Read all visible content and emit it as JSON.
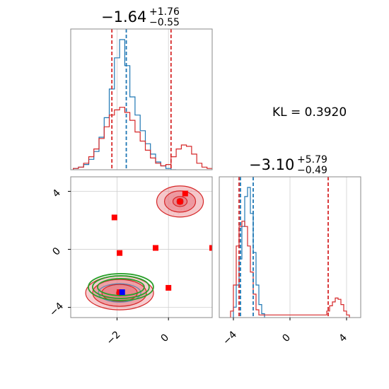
{
  "colors": {
    "blue": "#1f77b4",
    "red": "#d62728",
    "red_fill": "#e8838a",
    "green": "#2ca02c",
    "marker_red": "#ff0000",
    "marker_blue": "#0000ff",
    "grid": "#cfcfcf",
    "frame": "#8a8a8a"
  },
  "kl_text": "KL = 0.3920",
  "titles": {
    "x": {
      "main": "−1.64",
      "sup": "+1.76",
      "sub": "−0.55"
    },
    "y": {
      "main": "−3.10",
      "sup": "+5.79",
      "sub": "−0.49"
    }
  },
  "chart_data": [
    {
      "type": "histogram",
      "panel": "top-left marginal (parameter 1)",
      "xlim": [
        -3.8,
        1.7
      ],
      "x_ticks": [
        -2,
        0
      ],
      "series": [
        {
          "color": "blue",
          "bin_centers": [
            -3.6,
            -3.4,
            -3.2,
            -3.0,
            -2.8,
            -2.6,
            -2.4,
            -2.2,
            -2.0,
            -1.8,
            -1.6,
            -1.4,
            -1.2,
            -1.0,
            -0.8,
            -0.6,
            -0.4,
            -0.2,
            0.0,
            0.2
          ],
          "relative_heights": [
            0.01,
            0.02,
            0.04,
            0.08,
            0.14,
            0.25,
            0.4,
            0.62,
            0.86,
            1.0,
            0.8,
            0.56,
            0.42,
            0.3,
            0.2,
            0.12,
            0.06,
            0.03,
            0.01,
            0.0
          ]
        },
        {
          "color": "red",
          "bin_centers": [
            -3.6,
            -3.4,
            -3.2,
            -3.0,
            -2.8,
            -2.6,
            -2.4,
            -2.2,
            -2.0,
            -1.8,
            -1.6,
            -1.4,
            -1.2,
            -1.0,
            -0.8,
            -0.6,
            -0.4,
            -0.2,
            0.0,
            0.2,
            0.4,
            0.6,
            0.8,
            1.0,
            1.2,
            1.4,
            1.6
          ],
          "relative_heights": [
            0.01,
            0.02,
            0.05,
            0.1,
            0.16,
            0.24,
            0.33,
            0.42,
            0.46,
            0.48,
            0.44,
            0.38,
            0.29,
            0.22,
            0.15,
            0.09,
            0.05,
            0.03,
            0.04,
            0.1,
            0.16,
            0.19,
            0.18,
            0.12,
            0.05,
            0.02,
            0.01
          ]
        }
      ],
      "vlines": [
        {
          "x": -2.2,
          "color": "red",
          "style": "dashed"
        },
        {
          "x": -1.64,
          "color": "blue",
          "style": "dashed"
        },
        {
          "x": 0.1,
          "color": "red",
          "style": "dashed"
        }
      ],
      "grid": true
    },
    {
      "type": "scatter",
      "panel": "bottom-left 2D (parameter 1 vs parameter 2)",
      "xlim": [
        -3.8,
        1.7
      ],
      "ylim": [
        -4.7,
        5.0
      ],
      "x_ticks": [
        -2,
        0
      ],
      "y_ticks": [
        -4,
        0,
        4
      ],
      "red_square_markers": [
        [
          -2.1,
          2.2
        ],
        [
          -1.9,
          -0.25
        ],
        [
          -0.5,
          0.1
        ],
        [
          1.7,
          0.1
        ],
        [
          0.0,
          -2.65
        ],
        [
          0.65,
          3.85
        ],
        [
          0.45,
          3.3
        ],
        [
          -1.9,
          -2.95
        ]
      ],
      "blue_square_marker": [
        -1.8,
        -2.95
      ],
      "red_contour_modes": [
        {
          "center": [
            0.45,
            3.3
          ]
        },
        {
          "center": [
            -1.9,
            -3.0
          ]
        }
      ],
      "green_ellipses_center": [
        -1.85,
        -2.6
      ],
      "grid": true
    },
    {
      "type": "histogram",
      "panel": "bottom-right marginal (parameter 2)",
      "xlim": [
        -5.0,
        5.0
      ],
      "x_ticks": [
        -4,
        0,
        4
      ],
      "series": [
        {
          "color": "blue",
          "bin_centers": [
            -3.9,
            -3.7,
            -3.5,
            -3.3,
            -3.1,
            -2.9,
            -2.7,
            -2.5,
            -2.3,
            -2.1,
            -1.9
          ],
          "relative_heights": [
            0.08,
            0.25,
            0.45,
            0.7,
            0.93,
            1.0,
            0.8,
            0.5,
            0.25,
            0.1,
            0.03
          ]
        },
        {
          "color": "red",
          "bin_centers": [
            -4.1,
            -3.9,
            -3.7,
            -3.5,
            -3.3,
            -3.1,
            -2.9,
            -2.7,
            -2.5,
            -2.3,
            -2.1,
            2.5,
            2.7,
            2.9,
            3.1,
            3.3,
            3.5,
            3.7,
            3.9,
            4.1
          ],
          "relative_heights": [
            0.05,
            0.25,
            0.55,
            0.7,
            0.74,
            0.7,
            0.55,
            0.35,
            0.18,
            0.06,
            0.02,
            0.02,
            0.05,
            0.09,
            0.12,
            0.15,
            0.14,
            0.1,
            0.05,
            0.02
          ]
        }
      ],
      "vlines": [
        {
          "x": -3.6,
          "color": "red",
          "style": "dashed"
        },
        {
          "x": -3.5,
          "color": "blue",
          "style": "dashed"
        },
        {
          "x": -2.6,
          "color": "blue",
          "style": "dashed"
        },
        {
          "x": 2.7,
          "color": "red",
          "style": "dashed"
        }
      ],
      "grid": true
    }
  ]
}
